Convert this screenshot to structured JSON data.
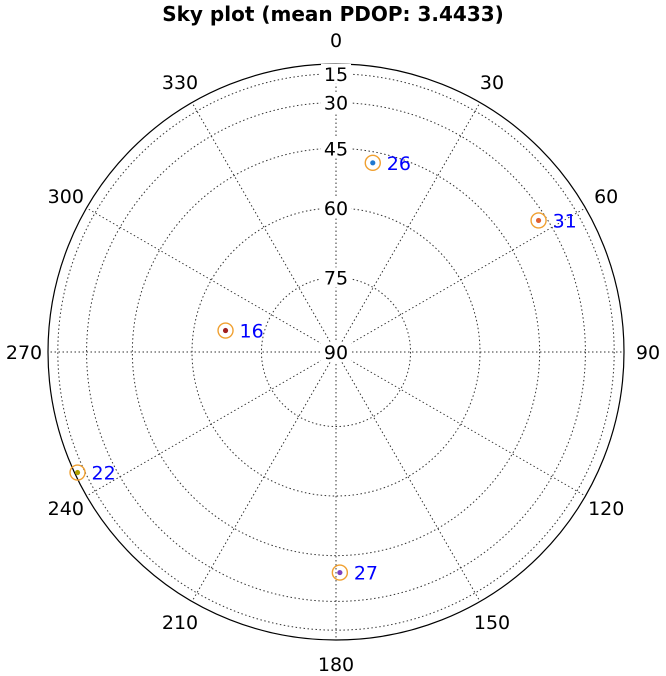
{
  "chart_data": {
    "type": "scatter",
    "subtype": "polar-sky-plot",
    "title": "Sky plot (mean PDOP: 3.4433)",
    "azimuth_ticks": [
      "0",
      "30",
      "60",
      "90",
      "120",
      "150",
      "180",
      "210",
      "240",
      "270",
      "300",
      "330"
    ],
    "elevation_ticks": [
      "15",
      "30",
      "45",
      "60",
      "75",
      "90"
    ],
    "elevation_range": [
      0,
      90
    ],
    "radial_scale": "cos",
    "grid": true,
    "marker_ring_color": "#f0a030",
    "label_color": "#0000ff",
    "satellites": [
      {
        "prn": "26",
        "azimuth": 11,
        "elevation": 48,
        "color": "#1f77d0"
      },
      {
        "prn": "31",
        "azimuth": 57,
        "elevation": 33,
        "color": "#e06030"
      },
      {
        "prn": "16",
        "azimuth": 281,
        "elevation": 67,
        "color": "#a02020"
      },
      {
        "prn": "22",
        "azimuth": 245,
        "elevation": 8,
        "color": "#b0a000"
      },
      {
        "prn": "27",
        "azimuth": 179,
        "elevation": 40,
        "color": "#7a40c0"
      }
    ]
  }
}
